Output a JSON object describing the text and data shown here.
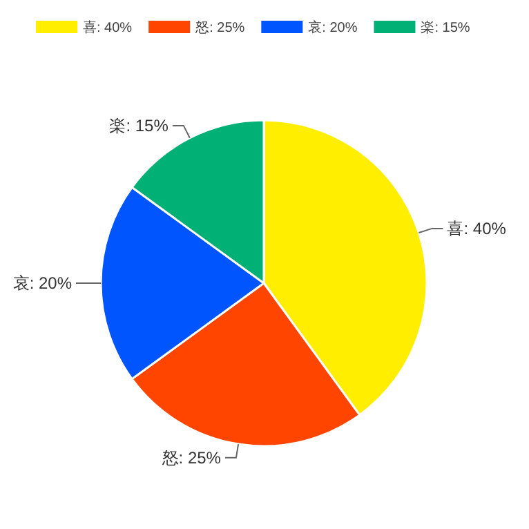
{
  "chart_data": {
    "type": "pie",
    "categories": [
      "喜: 40%",
      "怒: 25%",
      "哀: 20%",
      "楽: 15%"
    ],
    "values": [
      40,
      25,
      20,
      15
    ],
    "colors": [
      "#ffee00",
      "#ff4500",
      "#0055ff",
      "#00b074"
    ],
    "legend": "top"
  }
}
